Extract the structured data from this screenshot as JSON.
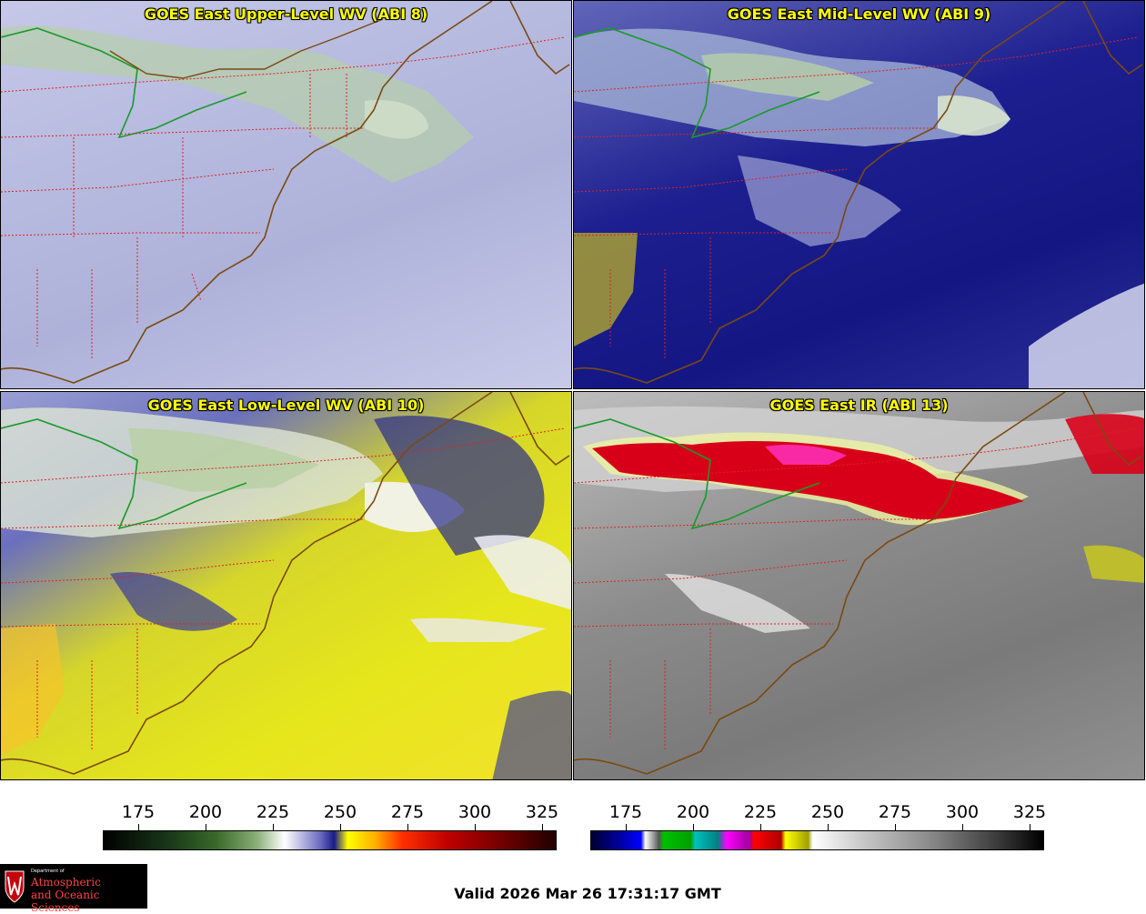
{
  "panels": [
    {
      "title": "GOES East Upper-Level WV (ABI 8)"
    },
    {
      "title": "GOES East Mid-Level WV (ABI 9)"
    },
    {
      "title": "GOES East Low-Level WV (ABI 10)"
    },
    {
      "title": "GOES East IR (ABI 13)"
    }
  ],
  "colorbar_wv": {
    "ticks": [
      "175",
      "200",
      "225",
      "250",
      "275",
      "300",
      "325"
    ]
  },
  "colorbar_ir": {
    "ticks": [
      "175",
      "200",
      "225",
      "250",
      "275",
      "300",
      "325"
    ]
  },
  "footer": {
    "valid": "Valid 2026 Mar 26 17:31:17 GMT"
  },
  "logo": {
    "department": "Department of",
    "line1": "Atmospheric",
    "line2": "and Oceanic Sciences"
  },
  "colors": {
    "title": "#ffff00",
    "state_borders": "#dd2222",
    "coastline": "#7a4a10",
    "intl_border": "#1a9a2a"
  }
}
